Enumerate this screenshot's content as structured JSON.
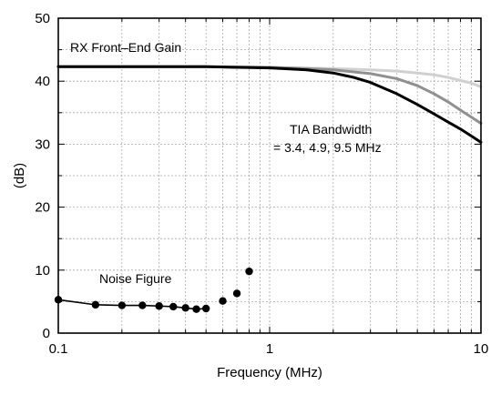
{
  "chart_data": {
    "type": "line",
    "title": "",
    "xlabel": "Frequency (MHz)",
    "ylabel": "(dB)",
    "xscale": "log",
    "xlim": [
      0.1,
      10
    ],
    "ylim": [
      0,
      50
    ],
    "x_ticks": [
      0.1,
      1,
      10
    ],
    "x_tick_labels": [
      "0.1",
      "1",
      "10"
    ],
    "y_ticks": [
      0,
      10,
      20,
      30,
      40,
      50
    ],
    "y_tick_labels": [
      "0",
      "10",
      "20",
      "30",
      "40",
      "50"
    ],
    "grid": true,
    "annotations": {
      "gain": "RX Front–End Gain",
      "tia_title": "TIA Bandwidth",
      "tia_values": "= 3.4, 4.9, 9.5 MHz",
      "noise": "Noise Figure"
    },
    "series": [
      {
        "color": "#d0d0d0",
        "style": "line",
        "x": [
          0.1,
          0.2,
          0.5,
          1,
          2,
          3,
          4,
          5,
          6,
          7,
          8,
          9,
          10
        ],
        "y": [
          42.3,
          42.3,
          42.3,
          42.2,
          42.0,
          41.8,
          41.6,
          41.3,
          41.0,
          40.6,
          40.1,
          39.7,
          39.1
        ]
      },
      {
        "color": "#909090",
        "style": "line",
        "x": [
          0.1,
          0.2,
          0.5,
          1,
          1.5,
          2,
          3,
          4,
          5,
          6,
          7,
          8,
          9,
          10
        ],
        "y": [
          42.3,
          42.3,
          42.3,
          42.2,
          42.0,
          41.8,
          41.2,
          40.4,
          39.3,
          38.0,
          36.7,
          35.4,
          34.3,
          33.3
        ]
      },
      {
        "color": "#000000",
        "style": "line",
        "x": [
          0.1,
          0.2,
          0.5,
          1,
          1.5,
          2,
          2.5,
          3,
          4,
          5,
          6,
          7,
          8,
          9,
          10
        ],
        "y": [
          42.3,
          42.3,
          42.3,
          42.1,
          41.8,
          41.3,
          40.6,
          39.8,
          38.0,
          36.3,
          34.8,
          33.5,
          32.4,
          31.3,
          30.3
        ]
      },
      {
        "color": "#000000",
        "style": "line-markers",
        "x": [
          0.1,
          0.15,
          0.2,
          0.25,
          0.3,
          0.35,
          0.4,
          0.45,
          0.5
        ],
        "y": [
          5.3,
          4.5,
          4.4,
          4.4,
          4.3,
          4.2,
          4.0,
          3.8,
          3.9
        ]
      },
      {
        "color": "#000000",
        "style": "markers",
        "x": [
          0.6,
          0.7,
          0.8
        ],
        "y": [
          5.1,
          6.3,
          9.8
        ]
      }
    ]
  }
}
